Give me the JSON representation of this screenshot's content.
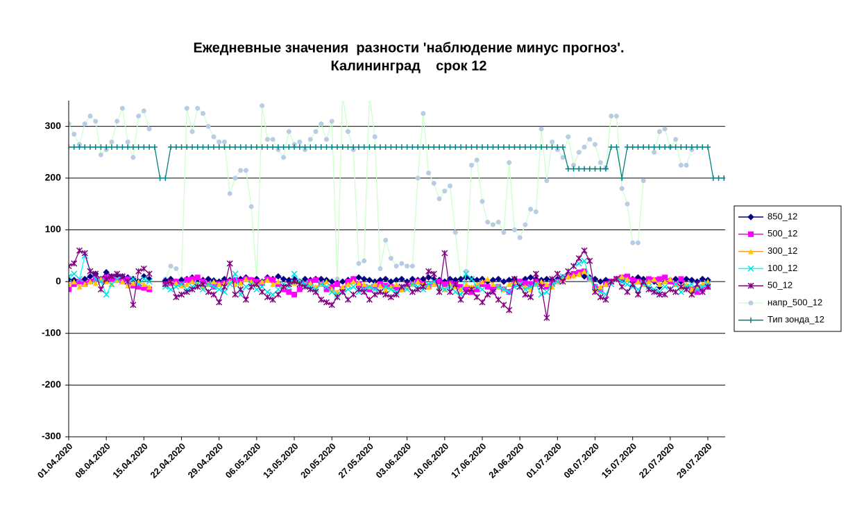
{
  "chart_data": {
    "type": "line",
    "title": "Ежедневные значения  разности 'наблюдение минус прогноз'.",
    "subtitle": "Калининград    срок 12",
    "categories": [
      "01.04.2020",
      null,
      null,
      null,
      null,
      null,
      null,
      "08.04.2020",
      null,
      null,
      null,
      null,
      null,
      null,
      "15.04.2020",
      null,
      null,
      null,
      null,
      null,
      null,
      "22.04.2020",
      null,
      null,
      null,
      null,
      null,
      null,
      "29.04.2020",
      null,
      null,
      null,
      null,
      null,
      null,
      "06.05.2020",
      null,
      null,
      null,
      null,
      null,
      null,
      "13.05.2020",
      null,
      null,
      null,
      null,
      null,
      null,
      "20.05.2020",
      null,
      null,
      null,
      null,
      null,
      null,
      "27.05.2020",
      null,
      null,
      null,
      null,
      null,
      null,
      "03.06.2020",
      null,
      null,
      null,
      null,
      null,
      null,
      "10.06.2020",
      null,
      null,
      null,
      null,
      null,
      null,
      "17.06.2020",
      null,
      null,
      null,
      null,
      null,
      null,
      "24.06.2020",
      null,
      null,
      null,
      null,
      null,
      null,
      "01.07.2020",
      null,
      null,
      null,
      null,
      null,
      null,
      "08.07.2020",
      null,
      null,
      null,
      null,
      null,
      null,
      "15.07.2020",
      null,
      null,
      null,
      null,
      null,
      null,
      "22.07.2020",
      null,
      null,
      null,
      null,
      null,
      null,
      "29.07.2020",
      null,
      null,
      null
    ],
    "ylim": [
      -300,
      350
    ],
    "yticks": [
      -300,
      -200,
      -100,
      0,
      100,
      200,
      300
    ],
    "grid": true,
    "legend": "right",
    "series": [
      {
        "name": "850_12",
        "color": "#000080",
        "marker": "diamond",
        "marker_color": "#000080",
        "values": [
          5,
          3,
          0,
          5,
          10,
          15,
          5,
          18,
          10,
          12,
          10,
          8,
          5,
          0,
          10,
          5,
          null,
          null,
          2,
          5,
          0,
          3,
          5,
          8,
          5,
          3,
          5,
          2,
          0,
          5,
          3,
          0,
          5,
          8,
          3,
          5,
          0,
          8,
          5,
          10,
          5,
          3,
          5,
          0,
          5,
          3,
          5,
          5,
          3,
          0,
          -3,
          0,
          3,
          5,
          8,
          5,
          3,
          0,
          3,
          5,
          0,
          3,
          5,
          0,
          5,
          3,
          5,
          8,
          5,
          3,
          0,
          5,
          3,
          5,
          8,
          5,
          3,
          5,
          0,
          3,
          5,
          0,
          3,
          5,
          0,
          5,
          8,
          5,
          3,
          5,
          3,
          5,
          8,
          10,
          12,
          15,
          10,
          8,
          5,
          0,
          3,
          0,
          5,
          3,
          8,
          5,
          8,
          5,
          3,
          0,
          -10,
          5,
          3,
          5,
          0,
          5,
          3,
          0,
          5,
          3,
          null,
          null,
          null
        ]
      },
      {
        "name": "500_12",
        "color": "#ff00ff",
        "marker": "square",
        "marker_color": "#ff00ff",
        "values": [
          -15,
          -5,
          0,
          -5,
          0,
          5,
          3,
          8,
          5,
          3,
          0,
          5,
          -8,
          -10,
          -12,
          -15,
          null,
          null,
          -5,
          -3,
          0,
          -5,
          3,
          5,
          8,
          0,
          -5,
          -10,
          -5,
          -3,
          0,
          3,
          0,
          5,
          3,
          0,
          -3,
          5,
          3,
          -5,
          -15,
          -20,
          -25,
          -15,
          -5,
          0,
          3,
          -5,
          -15,
          -10,
          -5,
          -15,
          0,
          5,
          -5,
          -10,
          -15,
          -10,
          -5,
          -8,
          -10,
          -12,
          -15,
          -10,
          -5,
          0,
          -5,
          -10,
          -5,
          0,
          -5,
          -3,
          -5,
          -10,
          -15,
          -20,
          -15,
          -5,
          -10,
          -15,
          -10,
          -15,
          -20,
          -5,
          0,
          -3,
          -5,
          0,
          -5,
          -10,
          -3,
          0,
          5,
          10,
          15,
          18,
          20,
          5,
          -10,
          -15,
          -5,
          0,
          5,
          8,
          10,
          3,
          0,
          -5,
          5,
          3,
          5,
          8,
          0,
          -5,
          5,
          -10,
          -15,
          -20,
          -15,
          -10,
          null,
          null,
          null
        ]
      },
      {
        "name": "300_12",
        "color": "#ff9933",
        "marker": "triangle",
        "marker_color": "#ffcc00",
        "values": [
          -5,
          0,
          -10,
          -5,
          0,
          -3,
          5,
          0,
          -5,
          3,
          0,
          -8,
          -3,
          0,
          -5,
          -10,
          null,
          null,
          -5,
          0,
          -3,
          -8,
          -5,
          0,
          -5,
          -10,
          -5,
          0,
          -5,
          -3,
          0,
          -5,
          -3,
          5,
          0,
          -5,
          0,
          3,
          -5,
          0,
          -10,
          -5,
          -3,
          0,
          -5,
          -3,
          -10,
          -5,
          0,
          -15,
          -20,
          -10,
          -5,
          0,
          -3,
          -5,
          -10,
          -5,
          -8,
          -15,
          -10,
          -5,
          -15,
          -10,
          -5,
          0,
          -5,
          -10,
          -5,
          -10,
          -15,
          -5,
          -10,
          -15,
          -5,
          -10,
          -5,
          0,
          5,
          -5,
          -10,
          -15,
          -5,
          0,
          -5,
          -10,
          -15,
          -5,
          0,
          -5,
          -10,
          0,
          5,
          10,
          12,
          15,
          20,
          5,
          -15,
          -10,
          -5,
          0,
          5,
          10,
          5,
          -5,
          0,
          -5,
          0,
          5,
          -5,
          0,
          5,
          -5,
          -10,
          -5,
          -15,
          -10,
          -5,
          0,
          null,
          null,
          null
        ]
      },
      {
        "name": "100_12",
        "color": "#00ffff",
        "marker": "x",
        "marker_color": "#00e0e0",
        "values": [
          10,
          15,
          5,
          50,
          20,
          5,
          0,
          -25,
          -5,
          5,
          10,
          0,
          5,
          -5,
          5,
          0,
          null,
          null,
          -10,
          -15,
          -10,
          -5,
          -15,
          -10,
          -5,
          -15,
          -5,
          -10,
          -15,
          -20,
          -5,
          15,
          -25,
          -10,
          -5,
          -15,
          -10,
          -20,
          -25,
          -15,
          -5,
          -10,
          15,
          0,
          -5,
          -10,
          -15,
          -5,
          -10,
          -20,
          -25,
          -20,
          -15,
          -10,
          -20,
          -15,
          -10,
          -15,
          -20,
          -10,
          -15,
          -20,
          -10,
          -15,
          -5,
          -10,
          -15,
          -5,
          0,
          -10,
          -15,
          -10,
          -20,
          -25,
          15,
          5,
          -10,
          -15,
          -25,
          -20,
          -10,
          -15,
          -20,
          -10,
          -5,
          -15,
          -10,
          -5,
          -25,
          -20,
          -5,
          0,
          10,
          20,
          30,
          35,
          40,
          5,
          -10,
          -20,
          -25,
          -5,
          5,
          0,
          -5,
          -10,
          -15,
          -5,
          -10,
          -15,
          -20,
          -10,
          -15,
          -5,
          -20,
          -10,
          -5,
          -15,
          -10,
          -5,
          null,
          null,
          null
        ]
      },
      {
        "name": "50_12",
        "color": "#800080",
        "marker": "star",
        "marker_color": "#800080",
        "values": [
          30,
          35,
          60,
          55,
          20,
          15,
          -15,
          5,
          10,
          15,
          10,
          0,
          -45,
          20,
          25,
          15,
          null,
          null,
          -5,
          0,
          -30,
          -25,
          -20,
          -15,
          -10,
          -5,
          -20,
          -25,
          -40,
          -10,
          35,
          -25,
          -15,
          -35,
          -10,
          -5,
          -20,
          -30,
          -35,
          -25,
          -10,
          -5,
          0,
          -5,
          -10,
          -15,
          -20,
          -35,
          -40,
          -45,
          -30,
          -20,
          -35,
          -25,
          -15,
          -20,
          -35,
          -25,
          -20,
          -25,
          -30,
          -25,
          -10,
          -5,
          -20,
          -15,
          -10,
          20,
          15,
          -20,
          55,
          -20,
          -5,
          -35,
          -20,
          -15,
          -30,
          -40,
          -25,
          -20,
          -35,
          -45,
          -55,
          5,
          -10,
          -25,
          -30,
          15,
          -10,
          -70,
          5,
          15,
          0,
          20,
          30,
          45,
          60,
          40,
          -20,
          -30,
          -35,
          0,
          5,
          -10,
          -20,
          -5,
          -25,
          0,
          -15,
          -20,
          -25,
          -25,
          -15,
          -20,
          -10,
          -15,
          -25,
          -5,
          -20,
          -10,
          null,
          null,
          null
        ]
      },
      {
        "name": "напр_500_12",
        "color": "#ccffcc",
        "marker": "circle",
        "marker_color": "#b8cce4",
        "values": [
          305,
          285,
          265,
          305,
          320,
          310,
          245,
          255,
          270,
          310,
          335,
          270,
          240,
          320,
          330,
          295,
          null,
          null,
          5,
          30,
          25,
          5,
          335,
          290,
          335,
          325,
          300,
          280,
          270,
          270,
          170,
          200,
          215,
          215,
          145,
          5,
          340,
          275,
          275,
          255,
          240,
          290,
          265,
          270,
          255,
          275,
          290,
          305,
          275,
          310,
          5,
          360,
          290,
          255,
          35,
          40,
          360,
          280,
          25,
          80,
          45,
          30,
          35,
          30,
          30,
          200,
          325,
          210,
          190,
          160,
          175,
          185,
          95,
          5,
          20,
          225,
          235,
          155,
          115,
          110,
          115,
          95,
          230,
          100,
          85,
          110,
          140,
          135,
          295,
          195,
          270,
          255,
          240,
          280,
          225,
          250,
          260,
          275,
          265,
          230,
          220,
          320,
          320,
          180,
          150,
          75,
          75,
          195,
          null,
          250,
          290,
          295,
          260,
          275,
          225,
          225,
          255,
          null,
          null,
          null,
          null,
          null,
          null
        ]
      },
      {
        "name": "Тип зонда_12",
        "color": "#008080",
        "marker": "plus",
        "marker_color": "#008080",
        "values": [
          260,
          260,
          260,
          260,
          260,
          260,
          260,
          260,
          260,
          260,
          260,
          260,
          260,
          260,
          260,
          260,
          260,
          200,
          200,
          260,
          260,
          260,
          260,
          260,
          260,
          260,
          260,
          260,
          260,
          260,
          260,
          260,
          260,
          260,
          260,
          260,
          260,
          260,
          260,
          260,
          260,
          260,
          260,
          260,
          260,
          260,
          260,
          260,
          260,
          260,
          260,
          260,
          260,
          260,
          260,
          260,
          260,
          260,
          260,
          260,
          260,
          260,
          260,
          260,
          260,
          260,
          260,
          260,
          260,
          260,
          260,
          260,
          260,
          260,
          260,
          260,
          260,
          260,
          260,
          260,
          260,
          260,
          260,
          260,
          260,
          260,
          260,
          260,
          260,
          260,
          260,
          260,
          260,
          218,
          218,
          218,
          218,
          218,
          218,
          218,
          218,
          260,
          260,
          200,
          260,
          260,
          260,
          260,
          260,
          260,
          260,
          260,
          260,
          260,
          260,
          260,
          260,
          260,
          260,
          260,
          200,
          200,
          200
        ]
      }
    ]
  }
}
